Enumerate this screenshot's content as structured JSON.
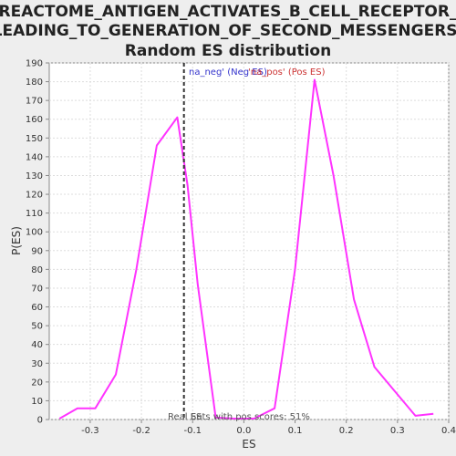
{
  "chart_data": {
    "type": "line",
    "title_lines": [
      "REACTOME_ANTIGEN_ACTIVATES_B_CELL_RECEPTOR_",
      "LEADING_TO_GENERATION_OF_SECOND_MESSENGERS:",
      "Random ES distribution"
    ],
    "xlabel": "ES",
    "ylabel": "P(ES)",
    "xlim": [
      -0.38,
      0.4
    ],
    "ylim": [
      0,
      190
    ],
    "xticks": [
      -0.3,
      -0.2,
      -0.1,
      0.0,
      0.1,
      0.2,
      0.3,
      0.4
    ],
    "xtick_labels": [
      "-0.3",
      "-0.2",
      "-0.1",
      "0.0",
      "0.1",
      "0.2",
      "0.3",
      "0.4"
    ],
    "yticks": [
      0,
      10,
      20,
      30,
      40,
      50,
      60,
      70,
      80,
      90,
      100,
      110,
      120,
      130,
      140,
      150,
      160,
      170,
      180,
      190
    ],
    "ytick_labels": [
      "0",
      "10",
      "20",
      "30",
      "40",
      "50",
      "60",
      "70",
      "80",
      "90",
      "100",
      "110",
      "120",
      "130",
      "140",
      "150",
      "160",
      "170",
      "180",
      "190"
    ],
    "grid": true,
    "series": [
      {
        "color": "#ff33ff",
        "x": [
          -0.36,
          -0.325,
          -0.29,
          -0.25,
          -0.21,
          -0.17,
          -0.13,
          -0.11,
          -0.09,
          -0.055,
          -0.02,
          0.02,
          0.06,
          0.1,
          0.138,
          0.175,
          0.215,
          0.255,
          0.295,
          0.335,
          0.37
        ],
        "y": [
          0.5,
          6,
          6,
          24,
          80,
          146,
          161,
          125,
          72,
          1,
          0.5,
          0.5,
          6,
          80,
          181,
          130,
          64,
          28,
          15,
          2,
          3
        ]
      }
    ],
    "real_es_line": {
      "x": -0.117,
      "color": "#333333"
    },
    "legend": {
      "placement": "top-center",
      "neg_text": "na_neg' (Neg ES)",
      "neg_color": "#3333cc",
      "pos_text": "'na_pos' (Pos ES)",
      "pos_color": "#cc3333"
    },
    "annotation": "Real ES",
    "annotation2": "Sets with pos scores: 51%",
    "colors": {
      "background": "#eeeeee",
      "plot_bg": "#ffffff",
      "grid": "#dddddd",
      "axis": "#888888"
    }
  }
}
